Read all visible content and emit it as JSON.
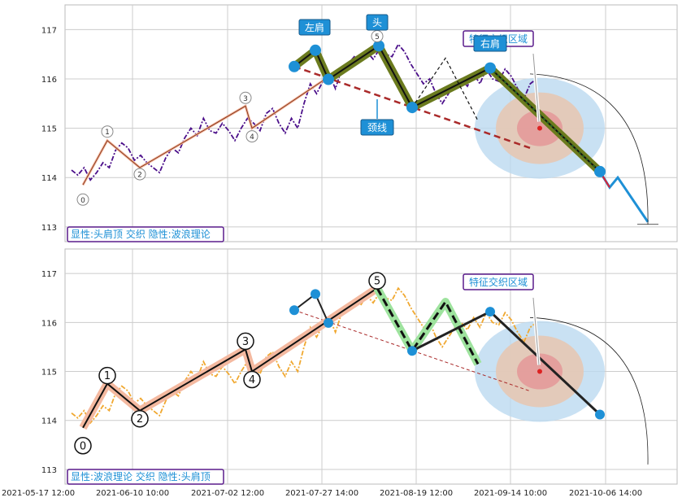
{
  "chart_data": [
    {
      "type": "line",
      "caption": "显性:头肩顶 交织 隐性:波浪理论",
      "ylim": [
        112.7,
        117.5
      ],
      "yticks": [
        "113",
        "114",
        "115",
        "116",
        "117"
      ],
      "grid": true,
      "x_dates": [
        "2021-05-17 12:00",
        "2021-06-10 10:00",
        "2021-07-02 12:00",
        "2021-07-27 14:00",
        "2021-08-19 12:00",
        "2021-09-14 10:00",
        "2021-10-06 14:00"
      ],
      "price_series": {
        "color": "#4b0f8a",
        "values": [
          114.15,
          114.05,
          114.2,
          113.95,
          114.1,
          114.3,
          114.2,
          114.55,
          114.7,
          114.6,
          114.35,
          114.45,
          114.3,
          114.2,
          114.1,
          114.4,
          114.6,
          114.5,
          114.8,
          115.0,
          114.85,
          115.2,
          114.95,
          114.9,
          115.1,
          114.95,
          114.75,
          115.0,
          115.2,
          115.1,
          114.95,
          115.3,
          115.4,
          115.1,
          114.9,
          115.2,
          115.0,
          115.5,
          115.9,
          115.7,
          115.95,
          116.1,
          115.8,
          116.2,
          116.3,
          116.45,
          116.35,
          116.55,
          116.4,
          116.6,
          116.5,
          116.45,
          116.7,
          116.55,
          116.3,
          116.1,
          115.9,
          116.0,
          115.7,
          115.5,
          115.7,
          115.9,
          116.0,
          115.85,
          116.1,
          115.9,
          116.2,
          116.0,
          115.95,
          116.2,
          116.05,
          115.8,
          115.6,
          115.9,
          116.0
        ]
      },
      "wave_points": [
        {
          "label": "0",
          "value": 113.85
        },
        {
          "label": "1",
          "value": 114.75
        },
        {
          "label": "2",
          "value": 114.2
        },
        {
          "label": "3",
          "value": 115.45
        },
        {
          "label": "4",
          "value": 115.0
        },
        {
          "label": "5",
          "value": 116.7
        }
      ],
      "head_shoulders": {
        "points": [
          116.25,
          116.58,
          115.99,
          116.67,
          115.42,
          116.22,
          114.12
        ],
        "labels": [
          "左肩",
          "头",
          "右肩",
          "颈线"
        ]
      },
      "neckline": {
        "start": 116.25,
        "end": 114.6
      },
      "projection": [
        114.12,
        113.8,
        114.0,
        113.1
      ],
      "feature_zone_label": "特征交织区域"
    },
    {
      "type": "line",
      "caption": "显性:波浪理论 交织 隐性:头肩顶",
      "ylim": [
        112.7,
        117.5
      ],
      "yticks": [
        "113",
        "114",
        "115",
        "116",
        "117"
      ],
      "grid": true,
      "x_dates": [
        "2021-05-17 12:00",
        "2021-06-10 10:00",
        "2021-07-02 12:00",
        "2021-07-27 14:00",
        "2021-08-19 12:00",
        "2021-09-14 10:00",
        "2021-10-06 14:00"
      ],
      "price_series": {
        "color": "#f0a830",
        "values": [
          114.15,
          114.05,
          114.2,
          113.95,
          114.1,
          114.3,
          114.2,
          114.55,
          114.7,
          114.6,
          114.35,
          114.45,
          114.3,
          114.2,
          114.1,
          114.4,
          114.6,
          114.5,
          114.8,
          115.0,
          114.85,
          115.2,
          114.95,
          114.9,
          115.1,
          114.95,
          114.75,
          115.0,
          115.2,
          115.1,
          114.95,
          115.3,
          115.4,
          115.1,
          114.9,
          115.2,
          115.0,
          115.5,
          115.9,
          115.7,
          115.95,
          116.1,
          115.8,
          116.2,
          116.3,
          116.45,
          116.35,
          116.55,
          116.4,
          116.6,
          116.5,
          116.45,
          116.7,
          116.55,
          116.3,
          116.1,
          115.9,
          116.0,
          115.7,
          115.5,
          115.7,
          115.9,
          116.0,
          115.85,
          116.1,
          115.9,
          116.2,
          116.0,
          115.95,
          116.2,
          116.05,
          115.8,
          115.6,
          115.9,
          116.0
        ]
      },
      "wave_points": [
        {
          "label": "0",
          "value": 113.85
        },
        {
          "label": "1",
          "value": 114.75
        },
        {
          "label": "2",
          "value": 114.2
        },
        {
          "label": "3",
          "value": 115.45
        },
        {
          "label": "4",
          "value": 115.0
        },
        {
          "label": "5",
          "value": 116.7
        }
      ],
      "abc": [
        116.7,
        115.42,
        116.42,
        115.15
      ],
      "head_shoulders_hidden": [
        116.25,
        116.58,
        115.99,
        116.67,
        115.42,
        116.22,
        114.12
      ],
      "feature_zone_label": "特征交织区域"
    }
  ],
  "colors": {
    "grid": "#cccccc",
    "marker_blue": "#1e90d6",
    "olive": "#6b7b1e",
    "neckline": "#aa2a2a",
    "wave_fill": "#f4b9a0",
    "abc_fill": "#9ee39e",
    "label_border": "#5a1c8c",
    "label_text": "#1e90d6",
    "zone_outer": "#bcd9f0",
    "zone_mid": "#e6c8b4",
    "zone_inner": "#e39a9a"
  }
}
